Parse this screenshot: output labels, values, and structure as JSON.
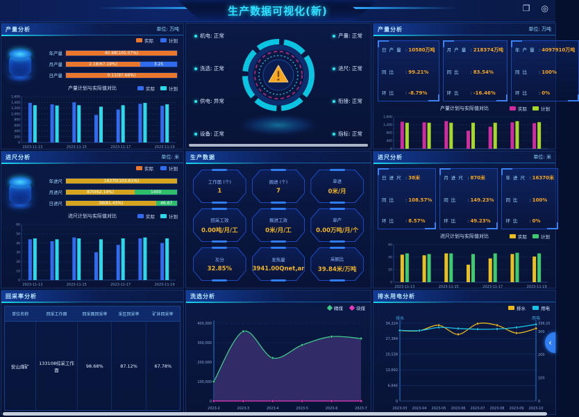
{
  "header": {
    "title": "生产数据可视化(新)"
  },
  "window_controls": {
    "copy_glyph": "❐",
    "record_glyph": "◎"
  },
  "misc": {
    "collapse_glyph": "‹"
  },
  "panels": {
    "prodLeft": {
      "title": "产量分析",
      "unit": "单位: 万吨",
      "legend": [
        {
          "label": "实际",
          "color": "#e8762c"
        },
        {
          "label": "计划",
          "color": "#2f6cf0"
        }
      ],
      "bars": [
        {
          "label": "年产量",
          "segs": [
            {
              "text": "40.98(105.07%)",
              "pct": 100,
              "color": "#e8762c"
            }
          ]
        },
        {
          "label": "月产量",
          "segs": [
            {
              "text": "2.18(67.19%)",
              "pct": 67,
              "color": "#e8762c"
            },
            {
              "text": "3.25",
              "pct": 33,
              "color": "#2f6cf0"
            }
          ]
        },
        {
          "label": "日产量",
          "segs": [
            {
              "text": "0.11(97.66%)",
              "pct": 100,
              "color": "#e8762c"
            }
          ]
        }
      ],
      "chart": {
        "type": "bar",
        "title": "产量计划与实际值对比",
        "legend": [
          {
            "label": "实际",
            "color": "#2f6cf0"
          },
          {
            "label": "计划",
            "color": "#2cd9e8"
          }
        ],
        "categories": [
          "2023-11-13",
          "2023-11-14",
          "2023-11-15",
          "2023-11-16",
          "2023-11-17",
          "2023-11-18",
          "2023-11-19"
        ],
        "x_label_every": 2,
        "ymax": 1600,
        "ytick_labels": [
          "1,600",
          "1,400",
          "1,200",
          "1,000",
          "800",
          "600",
          "400",
          "200",
          "0"
        ],
        "series": [
          {
            "name": "实际",
            "color": "#2f6cf0",
            "values": [
              1380,
              1330,
              1400,
              960,
              1150,
              1350,
              1280
            ]
          },
          {
            "name": "计划",
            "color": "#2cd9e8",
            "values": [
              1300,
              1290,
              1300,
              1250,
              1300,
              1380,
              1330
            ]
          }
        ]
      }
    },
    "statusPanel": {
      "left": [
        {
          "label": "机电",
          "value": "正常"
        },
        {
          "label": "洗选",
          "value": "正常"
        },
        {
          "label": "供电",
          "value": "异常"
        },
        {
          "label": "设备",
          "value": "正常"
        }
      ],
      "right": [
        {
          "label": "产量",
          "value": "正常"
        },
        {
          "label": "进尺",
          "value": "正常"
        },
        {
          "label": "衔接",
          "value": "正常"
        },
        {
          "label": "指标",
          "value": "正常"
        }
      ]
    },
    "prodRight": {
      "title": "产量分析",
      "unit": "单位: 万吨",
      "cards": [
        {
          "rows": [
            {
              "k": "日 产 量",
              "v": "10580万吨"
            },
            {
              "k": "同 比",
              "v": "99.21%"
            },
            {
              "k": "环 比",
              "v": "-8.79%"
            }
          ]
        },
        {
          "rows": [
            {
              "k": "月 产 量",
              "v": "218374万吨"
            },
            {
              "k": "同 比",
              "v": "83.54%"
            },
            {
              "k": "环 比",
              "v": "-16.46%"
            }
          ]
        },
        {
          "rows": [
            {
              "k": "年 产 量",
              "v": "4097910万吨"
            },
            {
              "k": "同 比",
              "v": "100%"
            },
            {
              "k": "环 比",
              "v": "0%"
            }
          ]
        }
      ],
      "chart": {
        "type": "bar",
        "title": "产量计划与实际值对比",
        "legend": [
          {
            "label": "实际",
            "color": "#d02ca0"
          },
          {
            "label": "计划",
            "color": "#a6d82a"
          }
        ],
        "categories": [
          "2023-11-13",
          "2023-11-14",
          "2023-11-15",
          "2023-11-16",
          "2023-11-17",
          "2023-11-18",
          "2023-11-19"
        ],
        "x_label_every": 2,
        "ymax": 1600,
        "ytick_labels": [
          "1,600",
          "1,200",
          "800",
          "400",
          "0"
        ],
        "series": [
          {
            "name": "实际",
            "color": "#d02ca0",
            "values": [
              1350,
              1320,
              1380,
              900,
              1100,
              1320,
              1280
            ]
          },
          {
            "name": "计划",
            "color": "#a6d82a",
            "values": [
              1300,
              1300,
              1300,
              1300,
              1300,
              1380,
              1330
            ]
          }
        ]
      }
    },
    "footageLeft": {
      "title": "进尺分析",
      "unit": "单位: 米",
      "legend": [
        {
          "label": "实际",
          "color": "#e8762c"
        },
        {
          "label": "计划",
          "color": "#2f6cf0"
        }
      ],
      "bars": [
        {
          "label": "年进尺",
          "segs": [
            {
              "text": "16370(103.61%)",
              "pct": 100,
              "color": "#d6a51d"
            }
          ]
        },
        {
          "label": "月进尺",
          "segs": [
            {
              "text": "870(62.14%)",
              "pct": 62,
              "color": "#d6a51d"
            },
            {
              "text": "1400",
              "pct": 38,
              "color": "#2ebd68"
            }
          ]
        },
        {
          "label": "日进尺",
          "segs": [
            {
              "text": "38(81.43%)",
              "pct": 81,
              "color": "#d6a51d"
            },
            {
              "text": "46.67",
              "pct": 19,
              "color": "#2ebd68"
            }
          ]
        }
      ],
      "chart": {
        "type": "bar",
        "title": "进尺计划与实际值对比",
        "legend": [
          {
            "label": "实际",
            "color": "#2f6cf0"
          },
          {
            "label": "计划",
            "color": "#2cd9e8"
          }
        ],
        "categories": [
          "2023-11-13",
          "2023-11-14",
          "2023-11-15",
          "2023-11-16",
          "2023-11-17",
          "2023-11-18",
          "2023-11-19"
        ],
        "x_label_every": 2,
        "ymax": 60,
        "ytick_labels": [
          "60",
          "50",
          "40",
          "30",
          "20",
          "10",
          "0"
        ],
        "series": [
          {
            "name": "实际",
            "color": "#2f6cf0",
            "values": [
              44,
              42,
              46,
              30,
              38,
              45,
              40
            ]
          },
          {
            "name": "计划",
            "color": "#2cd9e8",
            "values": [
              45,
              44,
              45,
              44,
              45,
              46,
              45
            ]
          }
        ]
      }
    },
    "production": {
      "title": "生产数据",
      "cards": [
        {
          "label": "工作面 (个)",
          "value": "1"
        },
        {
          "label": "掘进 (个)",
          "value": "7"
        },
        {
          "label": "单进",
          "value": "0米/月"
        },
        {
          "label": "回采工效",
          "value": "0.00吨/月/工"
        },
        {
          "label": "掘进工效",
          "value": "0米/月/工"
        },
        {
          "label": "单产",
          "value": "0.00万吨/月/个"
        },
        {
          "label": "灰分",
          "value": "32.85%"
        },
        {
          "label": "发热量",
          "value": "3941.00Qnet,ar"
        },
        {
          "label": "采掘比",
          "value": "39.84米/万吨"
        }
      ]
    },
    "footageRight": {
      "title": "进尺分析",
      "unit": "单位: 米",
      "cards": [
        {
          "rows": [
            {
              "k": "日 进 尺",
              "v": "38米"
            },
            {
              "k": "同 比",
              "v": "108.57%"
            },
            {
              "k": "环 比",
              "v": "8.57%"
            }
          ]
        },
        {
          "rows": [
            {
              "k": "月 进 尺",
              "v": "870米"
            },
            {
              "k": "同 比",
              "v": "149.23%"
            },
            {
              "k": "环 比",
              "v": "49.23%"
            }
          ]
        },
        {
          "rows": [
            {
              "k": "年 进 尺",
              "v": "16370米"
            },
            {
              "k": "同 比",
              "v": "100%"
            },
            {
              "k": "环 比",
              "v": "0%"
            }
          ]
        }
      ],
      "chart": {
        "type": "bar",
        "title": "进尺计划与实际值对比",
        "legend": [
          {
            "label": "实际",
            "color": "#e8c020"
          },
          {
            "label": "计划",
            "color": "#3ecb70"
          }
        ],
        "categories": [
          "2023-11-13",
          "2023-11-14",
          "2023-11-15",
          "2023-11-16",
          "2023-11-17",
          "2023-11-18",
          "2023-11-19"
        ],
        "x_label_every": 2,
        "ymax": 60,
        "ytick_labels": [
          "60",
          "40",
          "20",
          "0"
        ],
        "series": [
          {
            "name": "实际",
            "color": "#e8c020",
            "values": [
              44,
              43,
              46,
              28,
              38,
              45,
              41
            ]
          },
          {
            "name": "计划",
            "color": "#3ecb70",
            "values": [
              46,
              45,
              46,
              45,
              46,
              47,
              46
            ]
          }
        ]
      }
    },
    "recovery": {
      "title": "回采率分析",
      "headers": [
        "单位名称",
        "回采工作面",
        "回采面回采率",
        "采区回采率",
        "矿井回采率"
      ],
      "rows": [
        [
          "安山煤矿",
          "133108综采工作面",
          "98.68%",
          "87.12%",
          "67.78%"
        ]
      ]
    },
    "washing": {
      "title": "洗选分析",
      "legend": [
        {
          "label": "精煤",
          "color": "#3ecb8a"
        },
        {
          "label": "块煤",
          "color": "#e838b8"
        }
      ],
      "chart": {
        "type": "line",
        "categories": [
          "2023-2",
          "2023-3",
          "2023-4",
          "2023-5",
          "2023-6",
          "2023-7"
        ],
        "left": {
          "max": 400000,
          "ticks": [
            {
              "label": "400,000",
              "v": 400000
            },
            {
              "label": "300,000",
              "v": 300000
            },
            {
              "label": "200,000",
              "v": 200000
            },
            {
              "label": "100,000",
              "v": 100000
            },
            {
              "label": "0",
              "v": 0
            }
          ]
        },
        "grid": "dash",
        "series": [
          {
            "name": "精煤",
            "color": "#3ecb8a",
            "axis": "left",
            "area": "#37306e",
            "values": [
              100000,
              358000,
              221000,
              288000,
              331000,
              321000
            ]
          },
          {
            "name": "块煤",
            "color": "#e838b8",
            "axis": "left",
            "values": [
              0,
              0,
              0,
              0,
              0,
              0
            ]
          }
        ]
      }
    },
    "drainage": {
      "title": "排水用电分析",
      "legend": [
        {
          "label": "排水",
          "color": "#e8b71e"
        },
        {
          "label": "用电",
          "color": "#19c3e6"
        }
      ],
      "chart": {
        "type": "line",
        "categories": [
          "2023-03",
          "2023-04",
          "2023-05",
          "2023-06",
          "2023-07",
          "2023-08",
          "2023-09",
          "2023-10"
        ],
        "axis_names": {
          "left": "排水",
          "right": "用电"
        },
        "left": {
          "max": 34224,
          "ticks": [
            {
              "label": "34,224",
              "v": 34224
            },
            {
              "label": "27,384",
              "v": 27384
            },
            {
              "label": "20,538",
              "v": 20538
            },
            {
              "label": "13,692",
              "v": 13692
            },
            {
              "label": "6,846",
              "v": 6846
            },
            {
              "label": "0",
              "v": 0
            }
          ]
        },
        "right": {
          "max": 336.25,
          "ticks": [
            {
              "label": "336.25",
              "v": 336.25
            },
            {
              "label": "300",
              "v": 300
            },
            {
              "label": "200",
              "v": 200
            },
            {
              "label": "100",
              "v": 100
            },
            {
              "label": "0",
              "v": 0
            }
          ]
        },
        "grid": "solid",
        "series": [
          {
            "name": "排水",
            "color": "#e8b71e",
            "axis": "left",
            "values": [
              31000,
              30900,
              33300,
              29300,
              34000,
              33300,
              29900,
              31900
            ]
          },
          {
            "name": "用电",
            "color": "#19c3e6",
            "axis": "right",
            "values": [
              305,
              304,
              318,
              313,
              310,
              311,
              318,
              331
            ]
          }
        ]
      }
    }
  }
}
